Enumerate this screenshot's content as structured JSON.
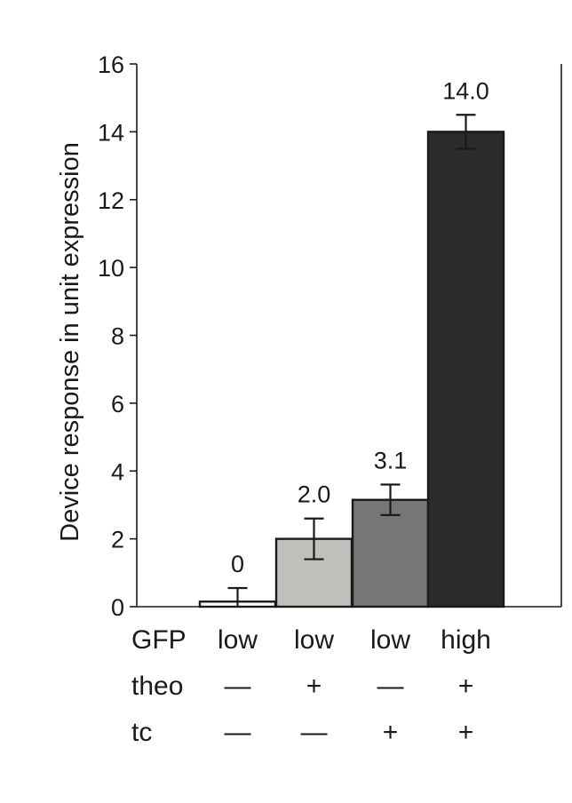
{
  "chart_data": {
    "type": "bar",
    "ylabel": "Device response in unit expression",
    "ylim": [
      0,
      16
    ],
    "yticks": [
      0,
      2,
      4,
      6,
      8,
      10,
      12,
      14,
      16
    ],
    "grid": false,
    "bars": [
      {
        "value": 0.15,
        "error": 0.4,
        "data_label": "0",
        "color": "#ffffff"
      },
      {
        "value": 2.0,
        "error": 0.6,
        "data_label": "2.0",
        "color": "#bfc1bc"
      },
      {
        "value": 3.15,
        "error": 0.45,
        "data_label": "3.1",
        "color": "#767676"
      },
      {
        "value": 14.0,
        "error": 0.5,
        "data_label": "14.0",
        "color": "#2b2b2b"
      }
    ],
    "conditions": [
      {
        "label": "GFP",
        "values": [
          "low",
          "low",
          "low",
          "high"
        ]
      },
      {
        "label": "theo",
        "values": [
          "—",
          "+",
          "—",
          "+"
        ]
      },
      {
        "label": "tc",
        "values": [
          "—",
          "—",
          "+",
          "+"
        ]
      }
    ]
  }
}
